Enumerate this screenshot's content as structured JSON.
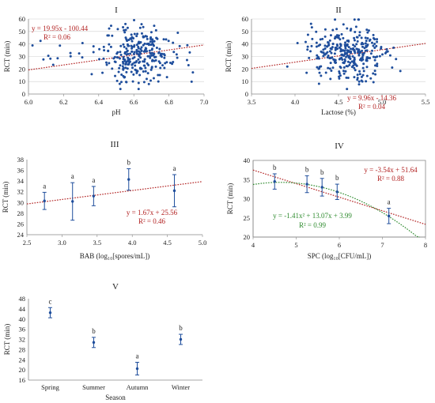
{
  "colors": {
    "point": "#1F4E9C",
    "trend_red": "#B22222",
    "trend_green": "#2E8B2E",
    "axis": "#888888",
    "grid": "#d0d0d0",
    "text": "#222222"
  },
  "chart_data": [
    {
      "id": "I",
      "type": "scatter",
      "title": "I",
      "xlabel": "pH",
      "ylabel": "RCT (min)",
      "xlim": [
        6.0,
        7.0
      ],
      "ylim": [
        0,
        60
      ],
      "xticks": [
        "6.0",
        "6.2",
        "6.4",
        "6.6",
        "6.8",
        "7.0"
      ],
      "yticks": [
        "0",
        "10",
        "20",
        "30",
        "40",
        "50",
        "60"
      ],
      "trend": {
        "color": "red",
        "slope": 19.95,
        "intercept": -100.44
      },
      "annotation": [
        "y = 19.95x - 100.44",
        "R² = 0.06"
      ]
    },
    {
      "id": "II",
      "type": "scatter",
      "title": "II",
      "xlabel": "Lactose (%)",
      "ylabel": "RCT (min)",
      "xlim": [
        3.5,
        5.5
      ],
      "ylim": [
        0,
        60
      ],
      "xticks": [
        "3.5",
        "4.0",
        "4.5",
        "5.0",
        "5.5"
      ],
      "yticks": [
        "0",
        "10",
        "20",
        "30",
        "40",
        "50",
        "60"
      ],
      "trend": {
        "color": "red",
        "slope": 9.96,
        "intercept": -14.36
      },
      "annotation": [
        "y = 9.96x - 14.36",
        "R² = 0.04"
      ]
    },
    {
      "id": "III",
      "type": "scatter",
      "title": "III",
      "xlabel": "BAB (log₁₀[spores/mL])",
      "ylabel": "RCT (min)",
      "xlim": [
        2.5,
        5.0
      ],
      "ylim": [
        24,
        38
      ],
      "xticks": [
        "2.5",
        "3.0",
        "3.5",
        "4.0",
        "4.5",
        "5.0"
      ],
      "yticks": [
        "24",
        "26",
        "28",
        "30",
        "32",
        "34",
        "36",
        "38"
      ],
      "points": [
        {
          "x": 2.75,
          "y": 30.3,
          "err": 1.6,
          "label": "a"
        },
        {
          "x": 3.15,
          "y": 30.2,
          "err": 3.5,
          "label": "a"
        },
        {
          "x": 3.45,
          "y": 31.2,
          "err": 1.8,
          "label": "a"
        },
        {
          "x": 3.95,
          "y": 34.3,
          "err": 2.0,
          "label": "b"
        },
        {
          "x": 4.6,
          "y": 32.2,
          "err": 3.0,
          "label": "a"
        }
      ],
      "trend": {
        "color": "red",
        "slope": 1.67,
        "intercept": 25.56
      },
      "annotation": [
        "y = 1.67x + 25.56",
        "R² = 0.46"
      ]
    },
    {
      "id": "IV",
      "type": "scatter",
      "title": "IV",
      "xlabel": "SPC (log₁₀[CFU/mL])",
      "ylabel": "RCT (min)",
      "xlim": [
        4,
        8
      ],
      "ylim": [
        20,
        40
      ],
      "xticks": [
        "4",
        "5",
        "6",
        "7",
        "8"
      ],
      "yticks": [
        "20",
        "25",
        "30",
        "35",
        "40"
      ],
      "points": [
        {
          "x": 4.5,
          "y": 34.5,
          "err": 2.0,
          "label": "b"
        },
        {
          "x": 5.25,
          "y": 33.8,
          "err": 2.2,
          "label": "b"
        },
        {
          "x": 5.6,
          "y": 33.0,
          "err": 2.3,
          "label": "b"
        },
        {
          "x": 5.95,
          "y": 31.8,
          "err": 2.0,
          "label": "b"
        },
        {
          "x": 7.15,
          "y": 25.5,
          "err": 2.0,
          "label": "a"
        }
      ],
      "trend": {
        "color": "red",
        "slope": -3.54,
        "intercept": 51.64
      },
      "trend2": {
        "color": "green",
        "a": -1.41,
        "b": 13.07,
        "c": 3.99
      },
      "annotation": [
        "y = -3.54x + 51.64",
        "R² = 0.88"
      ],
      "annotation2": [
        "y = -1.41x² + 13.07x + 3.99",
        "R² = 0.99"
      ]
    },
    {
      "id": "V",
      "type": "scatter",
      "title": "V",
      "xlabel": "Season",
      "ylabel": "RCT (min)",
      "ylim": [
        16,
        48
      ],
      "categories": [
        "Spring",
        "Summer",
        "Autumn",
        "Winter"
      ],
      "yticks": [
        "16",
        "20",
        "24",
        "28",
        "32",
        "36",
        "40",
        "44",
        "48"
      ],
      "points": [
        {
          "y": 42.5,
          "err": 2.0,
          "label": "c"
        },
        {
          "y": 30.8,
          "err": 2.0,
          "label": "b"
        },
        {
          "y": 20.5,
          "err": 2.5,
          "label": "a"
        },
        {
          "y": 32.0,
          "err": 2.0,
          "label": "b"
        }
      ]
    }
  ]
}
